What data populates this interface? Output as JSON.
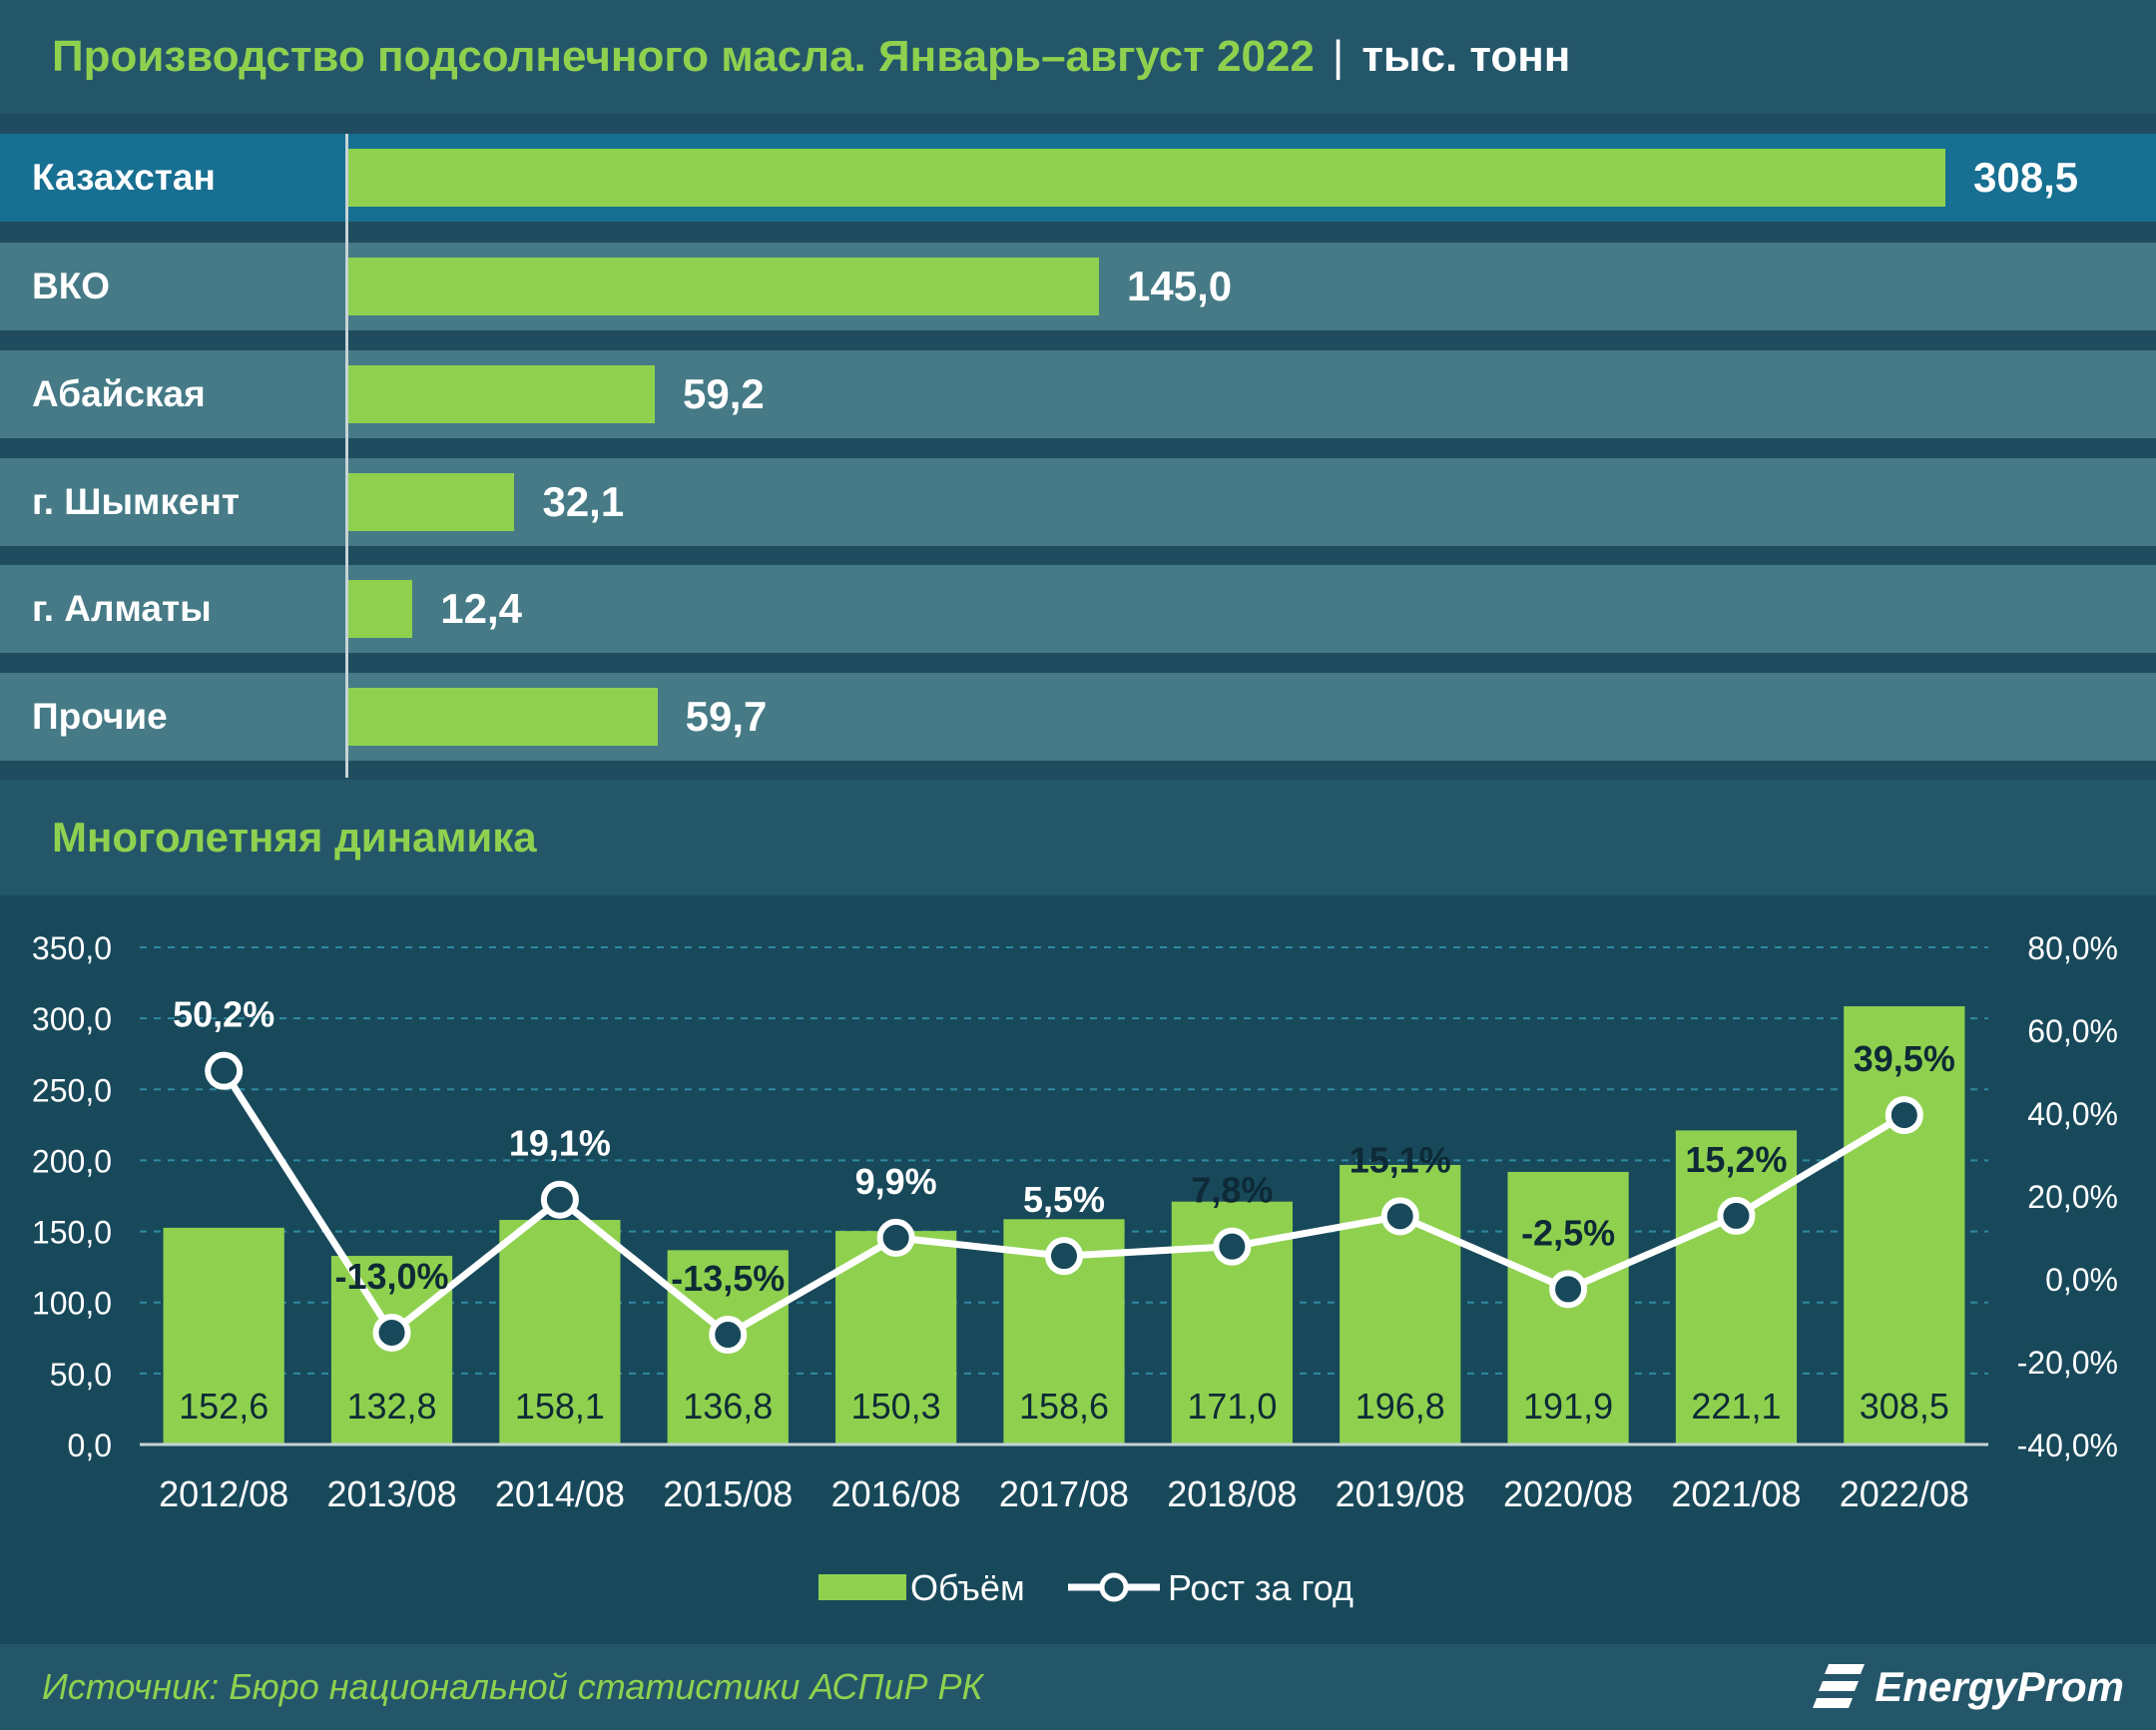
{
  "header": {
    "title": "Производство подсолнечного масла. Январь–август 2022",
    "separator": "|",
    "unit": "тыс. тонн"
  },
  "regions": [
    {
      "label": "Казахстан",
      "value": 308.5,
      "value_label": "308,5"
    },
    {
      "label": "ВКО",
      "value": 145.0,
      "value_label": "145,0"
    },
    {
      "label": "Абайская",
      "value": 59.2,
      "value_label": "59,2"
    },
    {
      "label": "г. Шымкент",
      "value": 32.1,
      "value_label": "32,1"
    },
    {
      "label": "г. Алматы",
      "value": 12.4,
      "value_label": "12,4"
    },
    {
      "label": "Прочие",
      "value": 59.7,
      "value_label": "59,7"
    }
  ],
  "section": {
    "title": "Многолетняя динамика"
  },
  "chart_data": {
    "type": "bar",
    "categories": [
      "2012/08",
      "2013/08",
      "2014/08",
      "2015/08",
      "2016/08",
      "2017/08",
      "2018/08",
      "2019/08",
      "2020/08",
      "2021/08",
      "2022/08"
    ],
    "series": [
      {
        "name": "Объём",
        "type": "bar",
        "axis": "left",
        "values": [
          152.6,
          132.8,
          158.1,
          136.8,
          150.3,
          158.6,
          171.0,
          196.8,
          191.9,
          221.1,
          308.5
        ],
        "labels": [
          "152,6",
          "132,8",
          "158,1",
          "136,8",
          "150,3",
          "158,6",
          "171,0",
          "196,8",
          "191,9",
          "221,1",
          "308,5"
        ]
      },
      {
        "name": "Рост за год",
        "type": "line",
        "axis": "right",
        "values": [
          50.2,
          -13.0,
          19.1,
          -13.5,
          9.9,
          5.5,
          7.8,
          15.1,
          -2.5,
          15.2,
          39.5
        ],
        "labels": [
          "50,2%",
          "-13,0%",
          "19,1%",
          "-13,5%",
          "9,9%",
          "5,5%",
          "7,8%",
          "15,1%",
          "-2,5%",
          "15,2%",
          "39,5%"
        ]
      }
    ],
    "ylim": [
      0,
      350
    ],
    "y2lim": [
      -40,
      80
    ],
    "yticks": [
      "0,0",
      "50,0",
      "100,0",
      "150,0",
      "200,0",
      "250,0",
      "300,0",
      "350,0"
    ],
    "y2ticks": [
      "-40,0%",
      "-20,0%",
      "0,0%",
      "20,0%",
      "40,0%",
      "60,0%",
      "80,0%"
    ],
    "grid": true,
    "legend": "bottom-center"
  },
  "colors": {
    "bar": "#8fd14f",
    "line": "#ffffff",
    "background": "#18495b",
    "highlight_row": "#176f91"
  },
  "footer": {
    "source": "Источник: Бюро национальной статистики АСПиР РК",
    "logo_text": "EnergyProm"
  }
}
